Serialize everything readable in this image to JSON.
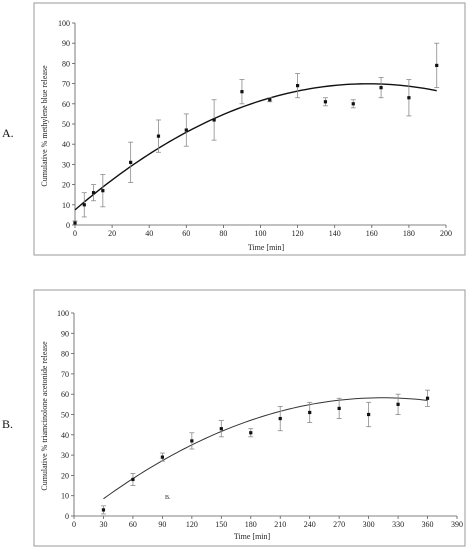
{
  "chart_data": [
    {
      "type": "scatter",
      "panel_label": "A.",
      "xlabel": "Time [min]",
      "ylabel": "Cumulative % methylene blue release",
      "xlim": [
        0,
        200
      ],
      "ylim": [
        0,
        100
      ],
      "xticks": [
        0,
        20,
        40,
        60,
        80,
        100,
        120,
        140,
        160,
        180,
        200
      ],
      "yticks": [
        0,
        10,
        20,
        30,
        40,
        50,
        60,
        70,
        80,
        90,
        100
      ],
      "grid": false,
      "series": [
        {
          "x": [
            0,
            5,
            10,
            15,
            30,
            45,
            60,
            75,
            90,
            105,
            120,
            135,
            150,
            165,
            180,
            195
          ],
          "y": [
            1,
            10,
            16,
            17,
            31,
            44,
            47,
            52,
            66,
            62,
            69,
            61,
            60,
            68,
            63,
            79
          ],
          "error": [
            1,
            6,
            4,
            8,
            10,
            8,
            8,
            10,
            6,
            1,
            6,
            2,
            2,
            5,
            9,
            11
          ]
        }
      ],
      "trendline": {
        "type": "polynomial-2",
        "x_range": [
          0,
          195
        ],
        "coefficients": [
          7.5,
          0.79,
          -0.0025
        ]
      }
    },
    {
      "type": "scatter",
      "panel_label": "B.",
      "note_label": "B.",
      "xlabel": "Time [min]",
      "ylabel": "Cumulative % triamcinolone acetonide release",
      "xlim": [
        0,
        390
      ],
      "ylim": [
        0,
        100
      ],
      "xticks": [
        0,
        30,
        60,
        90,
        120,
        150,
        180,
        210,
        240,
        270,
        300,
        330,
        360,
        390
      ],
      "yticks": [
        0,
        10,
        20,
        30,
        40,
        50,
        60,
        70,
        80,
        90,
        100
      ],
      "grid": false,
      "series": [
        {
          "x": [
            30,
            60,
            90,
            120,
            150,
            180,
            210,
            240,
            270,
            300,
            330,
            360
          ],
          "y": [
            3,
            18,
            29,
            37,
            43,
            41,
            48,
            51,
            53,
            50,
            55,
            58
          ],
          "error": [
            2,
            3,
            2,
            4,
            4,
            2,
            6,
            5,
            5,
            6,
            5,
            4
          ]
        }
      ],
      "trendline": {
        "type": "polynomial-2",
        "x_range": [
          30,
          360
        ],
        "coefficients": [
          -2.6,
          0.3875,
          -0.000617
        ]
      }
    }
  ]
}
